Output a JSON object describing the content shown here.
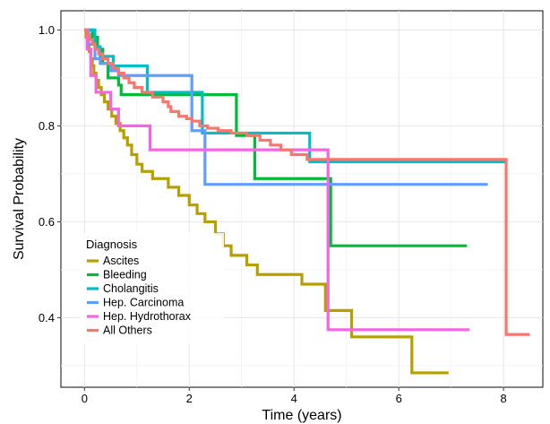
{
  "chart_data": {
    "type": "line",
    "step": true,
    "xlabel": "Time (years)",
    "ylabel": "Survival Probability",
    "xlim": [
      -0.45,
      8.75
    ],
    "ylim": [
      0.255,
      1.04
    ],
    "xticks": [
      0,
      2,
      4,
      6,
      8
    ],
    "yticks": [
      0.4,
      0.6,
      0.8,
      1.0
    ],
    "ytick_labels": [
      "0.4",
      "0.6",
      "0.8",
      "1.0"
    ],
    "grid": true,
    "legend": {
      "title": "Diagnosis",
      "position": "bottom-left"
    },
    "series": [
      {
        "name": "Ascites",
        "color": "#B79F00",
        "x": [
          0,
          0.03,
          0.06,
          0.09,
          0.12,
          0.15,
          0.18,
          0.22,
          0.27,
          0.32,
          0.38,
          0.45,
          0.52,
          0.6,
          0.68,
          0.75,
          0.82,
          0.9,
          1.0,
          1.1,
          1.3,
          1.6,
          1.8,
          2.0,
          2.15,
          2.3,
          2.5,
          2.65,
          2.8,
          3.1,
          3.3,
          4.15,
          4.6,
          5.1,
          6.25,
          6.95
        ],
        "y": [
          1.0,
          0.985,
          0.97,
          0.955,
          0.94,
          0.925,
          0.91,
          0.895,
          0.88,
          0.865,
          0.85,
          0.835,
          0.82,
          0.805,
          0.79,
          0.775,
          0.76,
          0.74,
          0.72,
          0.705,
          0.69,
          0.672,
          0.655,
          0.635,
          0.617,
          0.6,
          0.575,
          0.55,
          0.53,
          0.51,
          0.49,
          0.47,
          0.415,
          0.36,
          0.285,
          0.285
        ]
      },
      {
        "name": "Bleeding",
        "color": "#00BA38",
        "x": [
          0,
          0.15,
          0.25,
          0.35,
          0.45,
          0.65,
          0.7,
          2.9,
          3.25,
          4.7,
          7.3
        ],
        "y": [
          1.0,
          0.985,
          0.96,
          0.93,
          0.9,
          0.885,
          0.865,
          0.78,
          0.69,
          0.55,
          0.55
        ],
        "end_x": 7.3
      },
      {
        "name": "Cholangitis",
        "color": "#00BFC4",
        "x": [
          0,
          0.2,
          0.3,
          0.55,
          1.2,
          2.25,
          4.3,
          8.05
        ],
        "y": [
          1.0,
          0.965,
          0.945,
          0.925,
          0.87,
          0.785,
          0.725,
          0.725
        ]
      },
      {
        "name": "Hep. Carcinoma",
        "color": "#619CFF",
        "x": [
          0,
          0.08,
          0.2,
          0.3,
          0.5,
          0.65,
          2.05,
          2.3,
          7.7
        ],
        "y": [
          1.0,
          0.97,
          0.94,
          0.93,
          0.915,
          0.905,
          0.79,
          0.678,
          0.678
        ]
      },
      {
        "name": "Hep. Hydrothorax",
        "color": "#F564E3",
        "x": [
          0,
          0.05,
          0.12,
          0.22,
          0.5,
          0.65,
          1.25,
          4.65,
          7.35
        ],
        "y": [
          1.0,
          0.96,
          0.905,
          0.87,
          0.835,
          0.8,
          0.75,
          0.375,
          0.375
        ]
      },
      {
        "name": "All Others",
        "color": "#F8766D",
        "x": [
          0,
          0.05,
          0.1,
          0.15,
          0.2,
          0.27,
          0.35,
          0.45,
          0.55,
          0.65,
          0.75,
          0.85,
          0.95,
          1.1,
          1.3,
          1.5,
          1.6,
          1.65,
          1.8,
          1.95,
          2.05,
          2.2,
          2.35,
          2.55,
          2.8,
          3.1,
          3.35,
          3.55,
          3.75,
          3.95,
          4.25,
          8.05,
          8.5
        ],
        "y": [
          1.0,
          0.99,
          0.98,
          0.97,
          0.96,
          0.95,
          0.94,
          0.93,
          0.92,
          0.91,
          0.9,
          0.89,
          0.88,
          0.87,
          0.86,
          0.85,
          0.84,
          0.83,
          0.82,
          0.815,
          0.81,
          0.8,
          0.795,
          0.79,
          0.785,
          0.78,
          0.77,
          0.76,
          0.75,
          0.74,
          0.73,
          0.365,
          0.365
        ]
      }
    ]
  }
}
